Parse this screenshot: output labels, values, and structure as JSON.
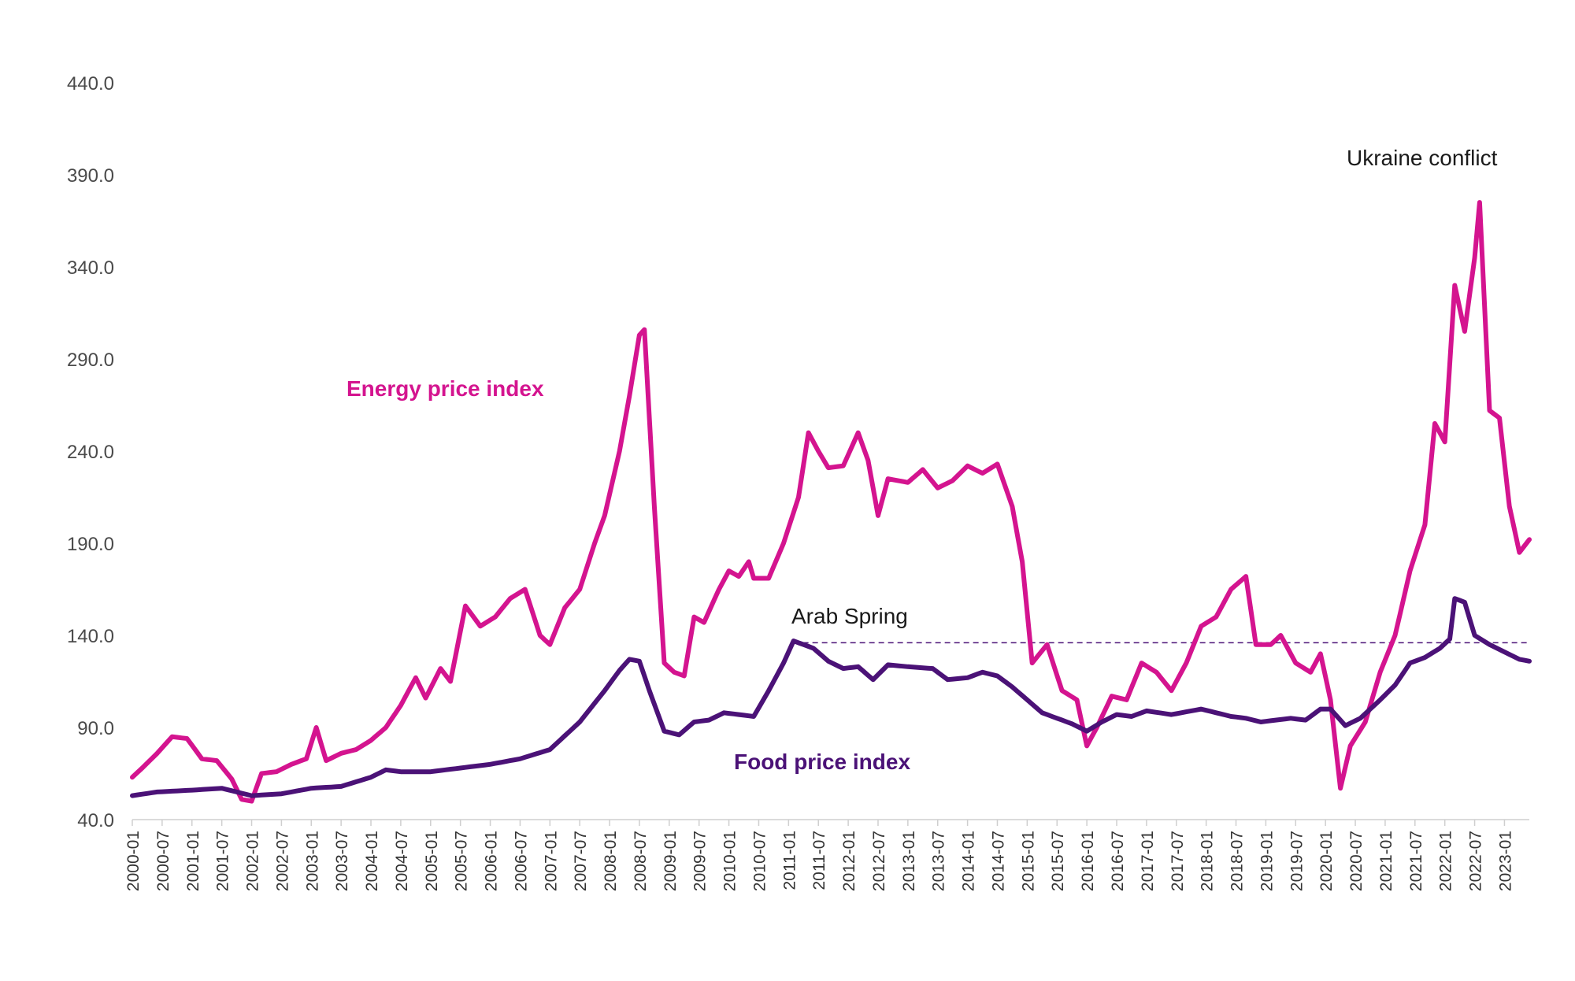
{
  "chart_data": {
    "type": "line",
    "title": "",
    "xlabel": "",
    "ylabel": "",
    "ylim": [
      40,
      440
    ],
    "yticks": [
      "40.0",
      "90.0",
      "140.0",
      "190.0",
      "240.0",
      "290.0",
      "340.0",
      "390.0",
      "440.0"
    ],
    "x_start": "2000-01",
    "x_end": "2023-06",
    "x_tick_labels": [
      "2000-01",
      "2000-07",
      "2001-01",
      "2001-07",
      "2002-01",
      "2002-07",
      "2003-01",
      "2003-07",
      "2004-01",
      "2004-07",
      "2005-01",
      "2005-07",
      "2006-01",
      "2006-07",
      "2007-01",
      "2007-07",
      "2008-01",
      "2008-07",
      "2009-01",
      "2009-07",
      "2010-01",
      "2010-07",
      "2011-01",
      "2011-07",
      "2012-01",
      "2012-07",
      "2013-01",
      "2013-07",
      "2014-01",
      "2014-07",
      "2015-01",
      "2015-07",
      "2016-01",
      "2016-07",
      "2017-01",
      "2017-07",
      "2018-01",
      "2018-07",
      "2019-01",
      "2019-07",
      "2020-01",
      "2020-07",
      "2021-01",
      "2021-07",
      "2022-01",
      "2022-07",
      "2023-01"
    ],
    "grid": false,
    "series": [
      {
        "name": "Energy price index",
        "color": "#d4148f",
        "points": [
          [
            "2000-01",
            63
          ],
          [
            "2000-03",
            68
          ],
          [
            "2000-06",
            76
          ],
          [
            "2000-09",
            85
          ],
          [
            "2000-12",
            84
          ],
          [
            "2001-03",
            73
          ],
          [
            "2001-06",
            72
          ],
          [
            "2001-09",
            62
          ],
          [
            "2001-11",
            51
          ],
          [
            "2002-01",
            50
          ],
          [
            "2002-03",
            65
          ],
          [
            "2002-06",
            66
          ],
          [
            "2002-09",
            70
          ],
          [
            "2002-12",
            73
          ],
          [
            "2003-02",
            90
          ],
          [
            "2003-04",
            72
          ],
          [
            "2003-07",
            76
          ],
          [
            "2003-10",
            78
          ],
          [
            "2004-01",
            83
          ],
          [
            "2004-04",
            90
          ],
          [
            "2004-07",
            102
          ],
          [
            "2004-10",
            117
          ],
          [
            "2004-12",
            106
          ],
          [
            "2005-03",
            122
          ],
          [
            "2005-05",
            115
          ],
          [
            "2005-08",
            156
          ],
          [
            "2005-11",
            145
          ],
          [
            "2006-02",
            150
          ],
          [
            "2006-05",
            160
          ],
          [
            "2006-08",
            165
          ],
          [
            "2006-11",
            140
          ],
          [
            "2007-01",
            135
          ],
          [
            "2007-04",
            155
          ],
          [
            "2007-07",
            165
          ],
          [
            "2007-10",
            190
          ],
          [
            "2007-12",
            205
          ],
          [
            "2008-03",
            240
          ],
          [
            "2008-05",
            270
          ],
          [
            "2008-07",
            303
          ],
          [
            "2008-08",
            306
          ],
          [
            "2008-10",
            210
          ],
          [
            "2008-12",
            125
          ],
          [
            "2009-02",
            120
          ],
          [
            "2009-04",
            118
          ],
          [
            "2009-06",
            150
          ],
          [
            "2009-08",
            147
          ],
          [
            "2009-11",
            165
          ],
          [
            "2010-01",
            175
          ],
          [
            "2010-03",
            172
          ],
          [
            "2010-05",
            180
          ],
          [
            "2010-06",
            171
          ],
          [
            "2010-09",
            171
          ],
          [
            "2010-12",
            190
          ],
          [
            "2011-03",
            215
          ],
          [
            "2011-05",
            250
          ],
          [
            "2011-07",
            240
          ],
          [
            "2011-09",
            231
          ],
          [
            "2011-12",
            232
          ],
          [
            "2012-03",
            250
          ],
          [
            "2012-05",
            235
          ],
          [
            "2012-07",
            205
          ],
          [
            "2012-09",
            225
          ],
          [
            "2013-01",
            223
          ],
          [
            "2013-04",
            230
          ],
          [
            "2013-07",
            220
          ],
          [
            "2013-10",
            224
          ],
          [
            "2014-01",
            232
          ],
          [
            "2014-04",
            228
          ],
          [
            "2014-07",
            233
          ],
          [
            "2014-10",
            210
          ],
          [
            "2014-12",
            180
          ],
          [
            "2015-02",
            125
          ],
          [
            "2015-05",
            135
          ],
          [
            "2015-08",
            110
          ],
          [
            "2015-11",
            105
          ],
          [
            "2016-01",
            80
          ],
          [
            "2016-03",
            90
          ],
          [
            "2016-06",
            107
          ],
          [
            "2016-09",
            105
          ],
          [
            "2016-12",
            125
          ],
          [
            "2017-03",
            120
          ],
          [
            "2017-06",
            110
          ],
          [
            "2017-09",
            125
          ],
          [
            "2017-12",
            145
          ],
          [
            "2018-03",
            150
          ],
          [
            "2018-06",
            165
          ],
          [
            "2018-09",
            172
          ],
          [
            "2018-11",
            135
          ],
          [
            "2019-02",
            135
          ],
          [
            "2019-04",
            140
          ],
          [
            "2019-07",
            125
          ],
          [
            "2019-10",
            120
          ],
          [
            "2019-12",
            130
          ],
          [
            "2020-02",
            105
          ],
          [
            "2020-04",
            57
          ],
          [
            "2020-06",
            80
          ],
          [
            "2020-09",
            93
          ],
          [
            "2020-12",
            120
          ],
          [
            "2021-03",
            140
          ],
          [
            "2021-06",
            175
          ],
          [
            "2021-09",
            200
          ],
          [
            "2021-11",
            255
          ],
          [
            "2022-01",
            245
          ],
          [
            "2022-03",
            330
          ],
          [
            "2022-05",
            305
          ],
          [
            "2022-07",
            345
          ],
          [
            "2022-08",
            375
          ],
          [
            "2022-10",
            262
          ],
          [
            "2022-12",
            258
          ],
          [
            "2023-02",
            210
          ],
          [
            "2023-04",
            185
          ],
          [
            "2023-06",
            192
          ]
        ]
      },
      {
        "name": "Food price index",
        "color": "#4b1277",
        "points": [
          [
            "2000-01",
            53
          ],
          [
            "2000-06",
            55
          ],
          [
            "2001-01",
            56
          ],
          [
            "2001-07",
            57
          ],
          [
            "2002-01",
            53
          ],
          [
            "2002-07",
            54
          ],
          [
            "2003-01",
            57
          ],
          [
            "2003-07",
            58
          ],
          [
            "2004-01",
            63
          ],
          [
            "2004-04",
            67
          ],
          [
            "2004-07",
            66
          ],
          [
            "2005-01",
            66
          ],
          [
            "2005-07",
            68
          ],
          [
            "2006-01",
            70
          ],
          [
            "2006-07",
            73
          ],
          [
            "2007-01",
            78
          ],
          [
            "2007-07",
            93
          ],
          [
            "2007-12",
            110
          ],
          [
            "2008-03",
            121
          ],
          [
            "2008-05",
            127
          ],
          [
            "2008-07",
            126
          ],
          [
            "2008-09",
            110
          ],
          [
            "2008-12",
            88
          ],
          [
            "2009-03",
            86
          ],
          [
            "2009-06",
            93
          ],
          [
            "2009-09",
            94
          ],
          [
            "2009-12",
            98
          ],
          [
            "2010-03",
            97
          ],
          [
            "2010-06",
            96
          ],
          [
            "2010-09",
            110
          ],
          [
            "2010-12",
            125
          ],
          [
            "2011-02",
            137
          ],
          [
            "2011-06",
            133
          ],
          [
            "2011-09",
            126
          ],
          [
            "2011-12",
            122
          ],
          [
            "2012-03",
            123
          ],
          [
            "2012-06",
            116
          ],
          [
            "2012-09",
            124
          ],
          [
            "2013-01",
            123
          ],
          [
            "2013-06",
            122
          ],
          [
            "2013-09",
            116
          ],
          [
            "2014-01",
            117
          ],
          [
            "2014-04",
            120
          ],
          [
            "2014-07",
            118
          ],
          [
            "2014-10",
            112
          ],
          [
            "2015-01",
            105
          ],
          [
            "2015-04",
            98
          ],
          [
            "2015-07",
            95
          ],
          [
            "2015-10",
            92
          ],
          [
            "2016-01",
            88
          ],
          [
            "2016-04",
            93
          ],
          [
            "2016-07",
            97
          ],
          [
            "2016-10",
            96
          ],
          [
            "2017-01",
            99
          ],
          [
            "2017-06",
            97
          ],
          [
            "2017-12",
            100
          ],
          [
            "2018-03",
            98
          ],
          [
            "2018-06",
            96
          ],
          [
            "2018-09",
            95
          ],
          [
            "2018-12",
            93
          ],
          [
            "2019-03",
            94
          ],
          [
            "2019-06",
            95
          ],
          [
            "2019-09",
            94
          ],
          [
            "2019-12",
            100
          ],
          [
            "2020-02",
            100
          ],
          [
            "2020-05",
            91
          ],
          [
            "2020-08",
            95
          ],
          [
            "2020-12",
            105
          ],
          [
            "2021-03",
            113
          ],
          [
            "2021-06",
            125
          ],
          [
            "2021-09",
            128
          ],
          [
            "2021-12",
            133
          ],
          [
            "2022-02",
            138
          ],
          [
            "2022-03",
            160
          ],
          [
            "2022-05",
            158
          ],
          [
            "2022-07",
            140
          ],
          [
            "2022-10",
            135
          ],
          [
            "2023-01",
            131
          ],
          [
            "2023-04",
            127
          ],
          [
            "2023-06",
            126
          ]
        ]
      }
    ],
    "annotations": {
      "energy_label": "Energy price index",
      "food_label": "Food price index",
      "arab_spring": "Arab Spring",
      "ukraine": "Ukraine conflict",
      "reference_line_value": 136,
      "reference_line_from": "2011-02",
      "reference_line_to": "2023-06"
    }
  }
}
